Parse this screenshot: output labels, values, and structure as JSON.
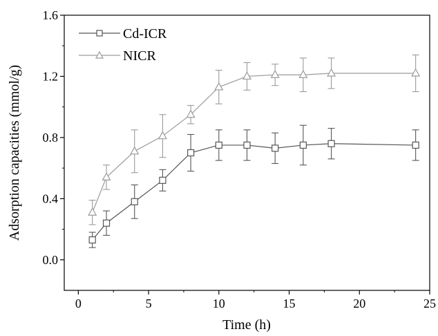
{
  "chart_data": {
    "type": "line",
    "xlabel": "Time (h)",
    "ylabel": "Adsorption capacities (mmol/g)",
    "xlim": [
      -1,
      25
    ],
    "ylim": [
      -0.2,
      1.6
    ],
    "xticks": [
      0,
      5,
      10,
      15,
      20,
      25
    ],
    "yticks": [
      0.0,
      0.4,
      0.8,
      1.2,
      1.6
    ],
    "ytick_labels": [
      "0.0",
      "0.4",
      "0.8",
      "1.2",
      "1.6"
    ],
    "xtick_labels": [
      "0",
      "5",
      "10",
      "15",
      "20",
      "25"
    ],
    "grid": false,
    "legend": "top-left",
    "series": [
      {
        "name": "Cd-ICR",
        "marker": "square",
        "color": "#555555",
        "x": [
          1,
          2,
          4,
          6,
          8,
          10,
          12,
          14,
          16,
          18,
          24
        ],
        "y": [
          0.13,
          0.24,
          0.38,
          0.52,
          0.7,
          0.75,
          0.75,
          0.73,
          0.75,
          0.76,
          0.75
        ],
        "error": [
          0.05,
          0.08,
          0.11,
          0.07,
          0.12,
          0.1,
          0.1,
          0.1,
          0.13,
          0.1,
          0.1
        ]
      },
      {
        "name": "NICR",
        "marker": "triangle",
        "color": "#9a9a9a",
        "x": [
          1,
          2,
          4,
          6,
          8,
          10,
          12,
          14,
          16,
          18,
          24
        ],
        "y": [
          0.31,
          0.54,
          0.71,
          0.81,
          0.95,
          1.13,
          1.2,
          1.21,
          1.21,
          1.22,
          1.22
        ],
        "error": [
          0.08,
          0.08,
          0.14,
          0.14,
          0.06,
          0.11,
          0.09,
          0.07,
          0.11,
          0.1,
          0.12
        ]
      }
    ]
  }
}
